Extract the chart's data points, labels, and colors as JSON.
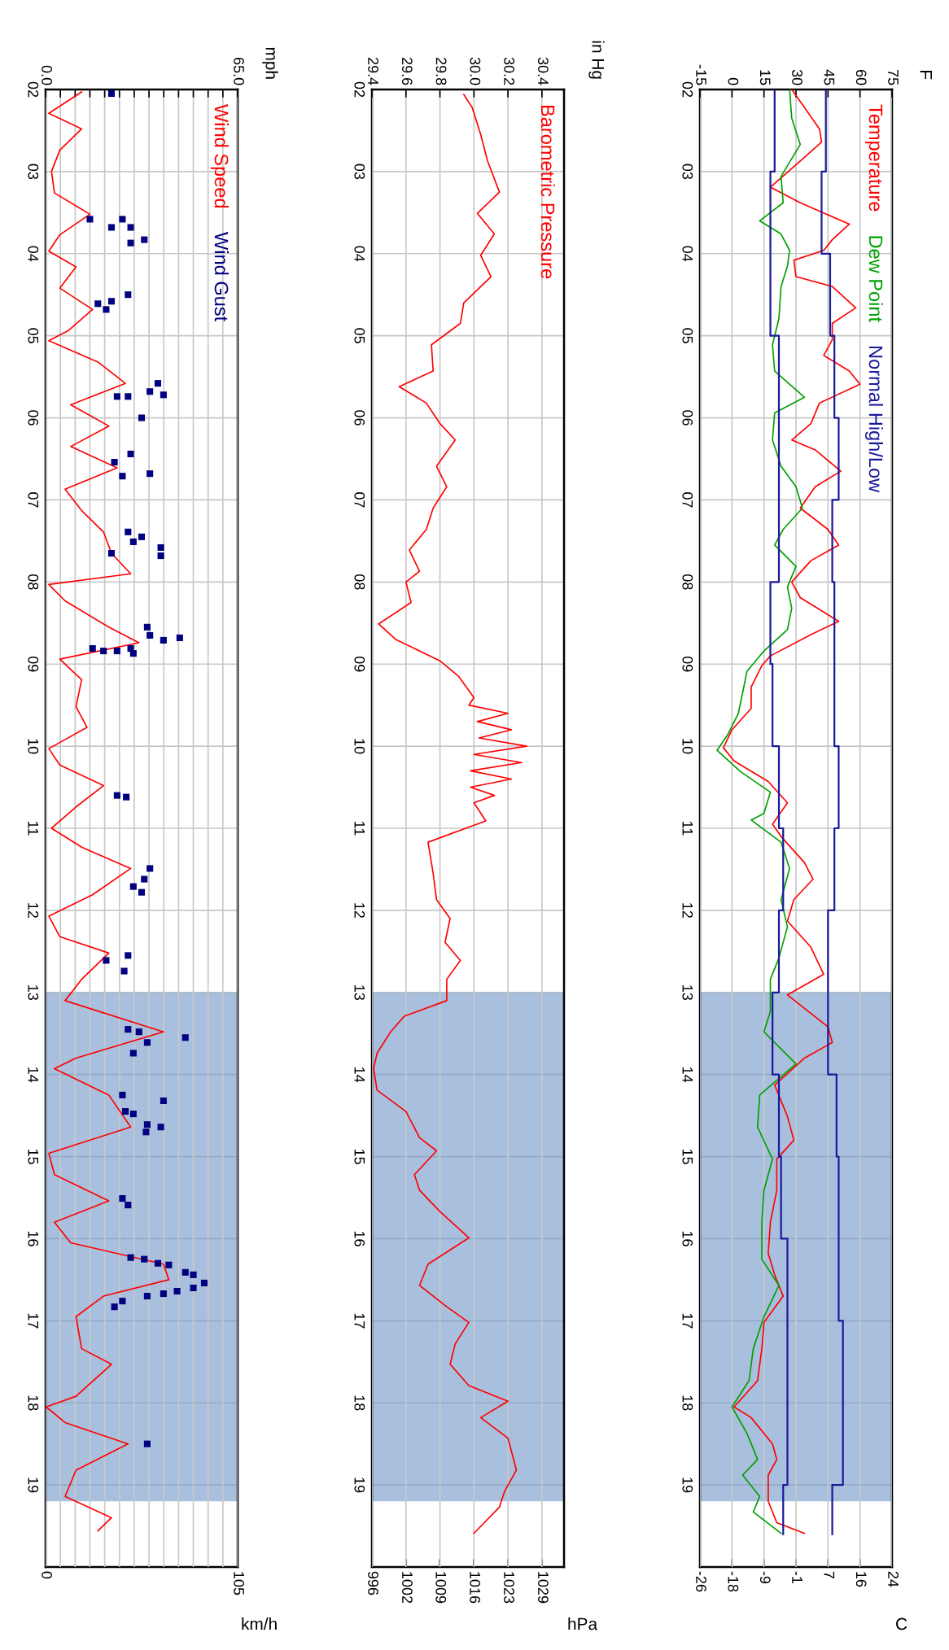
{
  "chart_data": [
    {
      "type": "line",
      "x2label": "F",
      "xlabel": "C",
      "ylim": [
        20,
        2
      ],
      "yticks": [
        {
          "value": 2,
          "label": "02"
        },
        {
          "value": 3,
          "label": "03"
        },
        {
          "value": 4,
          "label": "04"
        },
        {
          "value": 5,
          "label": "05"
        },
        {
          "value": 6,
          "label": "06"
        },
        {
          "value": 7,
          "label": "07"
        },
        {
          "value": 8,
          "label": "08"
        },
        {
          "value": 9,
          "label": "09"
        },
        10,
        11,
        12,
        13,
        14,
        15,
        16,
        17,
        18,
        19
      ],
      "x2lim": [
        -15,
        75
      ],
      "x2ticks": [
        -15,
        0,
        15,
        30,
        45,
        60,
        75
      ],
      "xlim": [
        -26.11,
        23.89
      ],
      "xticks": [
        {
          "value": -26.11,
          "label": "-26"
        },
        {
          "value": -17.78,
          "label": "-18"
        },
        {
          "value": -9.44,
          "label": "-9"
        },
        {
          "value": -1.11,
          "label": "-1"
        },
        {
          "value": 7.22,
          "label": "7"
        },
        {
          "value": 15.56,
          "label": "16"
        },
        {
          "value": 23.89,
          "label": "24"
        }
      ],
      "grid": true,
      "bands": [
        {
          "axis": "y",
          "from": 13,
          "to": 19.2,
          "color": "#6f94c8"
        }
      ],
      "series": [
        {
          "name": "Temperature",
          "axis": "x2",
          "color": "#ff0000",
          "values": [
            2.0,
            2.22,
            2.48,
            2.64,
            2.87,
            3.19,
            3.38,
            3.64,
            3.83,
            3.96,
            4.08,
            4.28,
            4.4,
            4.66,
            4.85,
            5.05,
            5.24,
            5.43,
            5.59,
            5.82,
            6.07,
            6.27,
            6.39,
            6.65,
            6.84,
            7.1,
            7.36,
            7.55,
            7.74,
            8.0,
            8.19,
            8.48,
            8.64,
            8.9,
            9.02,
            9.28,
            9.54,
            9.8,
            10.02,
            10.18,
            10.43,
            10.69,
            10.95,
            11.1,
            11.42,
            11.62,
            11.87,
            12.13,
            12.45,
            12.78,
            13.03,
            13.42,
            13.61,
            13.8,
            14.13,
            14.51,
            14.8,
            15.03,
            15.41,
            15.8,
            16.18,
            16.44,
            16.7,
            17.02,
            17.34,
            17.73,
            18.05,
            18.18,
            18.5,
            18.69,
            18.88,
            19.2,
            19.46,
            19.59
          ],
          "x": [
            28,
            34,
            41,
            42,
            32,
            18,
            32,
            55,
            47,
            43,
            29,
            30,
            47,
            58,
            47,
            47,
            43,
            55,
            60,
            41,
            37,
            28,
            39,
            51,
            39,
            32,
            45,
            50,
            37,
            28,
            32,
            50,
            37,
            18,
            14,
            9,
            9,
            0,
            -4,
            1,
            17,
            26,
            19,
            23,
            34,
            38,
            29,
            26,
            37,
            43,
            26,
            45,
            47,
            34,
            20,
            26,
            29,
            21,
            21,
            18,
            17,
            20,
            24,
            15,
            14,
            12,
            1,
            9,
            19,
            21,
            17,
            17,
            21,
            34
          ]
        },
        {
          "name": "Dew Point",
          "axis": "x2",
          "color": "#00a000",
          "values": [
            2.0,
            2.35,
            2.67,
            3.06,
            3.38,
            3.6,
            3.76,
            3.96,
            4.15,
            4.4,
            4.79,
            5.11,
            5.43,
            5.75,
            5.94,
            6.27,
            6.59,
            6.84,
            7.1,
            7.36,
            7.55,
            7.81,
            8.06,
            8.32,
            8.58,
            8.84,
            9.09,
            9.35,
            9.6,
            9.86,
            10.05,
            10.31,
            10.56,
            10.82,
            10.9,
            11.17,
            11.49,
            11.87,
            12.2,
            12.58,
            12.84,
            13.23,
            13.48,
            13.87,
            14.25,
            14.64,
            15.03,
            15.41,
            15.8,
            16.25,
            16.57,
            16.95,
            17.34,
            17.73,
            18.05,
            18.37,
            18.69,
            18.88,
            19.14,
            19.33,
            19.59
          ],
          "x": [
            27,
            28,
            32,
            23,
            24,
            13,
            23,
            27,
            26,
            23,
            22,
            19,
            20,
            34,
            20,
            19,
            23,
            30,
            33,
            24,
            20,
            30,
            26,
            28,
            26,
            15,
            7,
            5,
            3,
            -2,
            -7,
            4,
            18,
            15,
            9,
            23,
            27,
            23,
            26,
            22,
            18,
            18,
            15,
            30,
            13,
            12,
            19,
            15,
            14,
            14,
            22,
            15,
            10,
            8,
            0,
            7,
            12,
            5,
            13,
            10,
            23
          ]
        },
        {
          "name": "Normal High/Low",
          "type": "step",
          "axis": "x2",
          "color": "#1a1a9a",
          "values": [
            2,
            3,
            4,
            5,
            6,
            7,
            8,
            9,
            10,
            11,
            12,
            13,
            14,
            15,
            16,
            17,
            18,
            19,
            19.6
          ],
          "x": [
            44,
            42,
            46,
            48,
            50,
            47,
            48,
            48,
            50,
            48,
            45,
            45,
            49,
            50,
            50,
            52,
            52,
            47,
            47
          ]
        },
        {
          "type": "step",
          "axis": "x2",
          "color": "#1a1a9a",
          "values": [
            2,
            3,
            4,
            5,
            6,
            7,
            8,
            9,
            10,
            11,
            12,
            13,
            14,
            15,
            16,
            17,
            18,
            19,
            19.6
          ],
          "x": [
            20,
            18,
            18,
            22,
            22,
            22,
            18,
            19,
            22,
            24,
            22,
            19,
            22,
            23,
            26,
            26,
            26,
            24,
            24
          ]
        }
      ]
    },
    {
      "type": "line",
      "x2label": "in Hg",
      "xlabel": "hPa",
      "ylim": [
        20,
        2
      ],
      "yticks": [
        {
          "value": 2,
          "label": "02"
        },
        {
          "value": 3,
          "label": "03"
        },
        {
          "value": 4,
          "label": "04"
        },
        {
          "value": 5,
          "label": "05"
        },
        {
          "value": 6,
          "label": "06"
        },
        {
          "value": 7,
          "label": "07"
        },
        {
          "value": 8,
          "label": "08"
        },
        {
          "value": 9,
          "label": "09"
        },
        10,
        11,
        12,
        13,
        14,
        15,
        16,
        17,
        18,
        19
      ],
      "x2lim": [
        29.4,
        30.53
      ],
      "x2ticks": [
        29.4,
        29.6,
        29.8,
        {
          "value": 30.0,
          "label": "30.0"
        },
        30.2,
        30.4
      ],
      "xlim": [
        995.6,
        1033.9
      ],
      "xticks": [
        {
          "value": 995.6,
          "label": "996"
        },
        {
          "value": 1002.4,
          "label": "1002"
        },
        {
          "value": 1009.1,
          "label": "1009"
        },
        {
          "value": 1015.9,
          "label": "1016"
        },
        {
          "value": 1022.7,
          "label": "1023"
        },
        {
          "value": 1029.5,
          "label": "1029"
        }
      ],
      "grid": true,
      "bands": [
        {
          "axis": "y",
          "from": 13,
          "to": 19.2,
          "color": "#6f94c8"
        }
      ],
      "series": [
        {
          "name": "Barometric Pressure",
          "axis": "x2",
          "color": "#ff0000",
          "values": [
            2.06,
            2.22,
            2.55,
            2.87,
            3.25,
            3.51,
            3.76,
            4.02,
            4.28,
            4.6,
            4.85,
            5.11,
            5.43,
            5.62,
            5.82,
            6.07,
            6.27,
            6.59,
            6.84,
            7.1,
            7.36,
            7.61,
            7.87,
            8.0,
            8.25,
            8.51,
            8.7,
            8.96,
            9.15,
            9.41,
            9.5,
            9.6,
            9.7,
            9.8,
            9.9,
            10.0,
            10.1,
            10.2,
            10.3,
            10.4,
            10.5,
            10.6,
            10.69,
            10.91,
            11.17,
            11.55,
            11.87,
            12.1,
            12.39,
            12.61,
            12.84,
            13.1,
            13.29,
            13.48,
            13.74,
            13.93,
            14.19,
            14.45,
            14.77,
            14.93,
            15.22,
            15.41,
            15.67,
            15.99,
            16.31,
            16.57,
            16.83,
            17.02,
            17.28,
            17.53,
            17.79,
            17.98,
            18.18,
            18.43,
            18.82,
            19.08,
            19.27,
            19.59
          ],
          "x": [
            29.94,
            29.99,
            30.04,
            30.08,
            30.15,
            30.02,
            30.12,
            30.04,
            30.1,
            29.94,
            29.92,
            29.75,
            29.76,
            29.56,
            29.72,
            29.8,
            29.89,
            29.78,
            29.84,
            29.76,
            29.72,
            29.62,
            29.68,
            29.6,
            29.63,
            29.44,
            29.54,
            29.8,
            29.91,
            30.0,
            29.97,
            30.2,
            30.02,
            30.22,
            30.03,
            30.31,
            30.0,
            30.28,
            29.98,
            30.22,
            29.98,
            30.12,
            30.0,
            30.07,
            29.73,
            29.76,
            29.78,
            29.86,
            29.83,
            29.92,
            29.84,
            29.84,
            29.59,
            29.51,
            29.43,
            29.41,
            29.43,
            29.6,
            29.68,
            29.78,
            29.65,
            29.68,
            29.8,
            29.97,
            29.73,
            29.68,
            29.84,
            29.97,
            29.89,
            29.86,
            29.97,
            30.2,
            30.04,
            30.2,
            30.25,
            30.18,
            30.15,
            30.0
          ]
        }
      ]
    },
    {
      "type": "line",
      "x2label": "mph",
      "xlabel": "km/h",
      "ylim": [
        20,
        2
      ],
      "yticks": [
        {
          "value": 2,
          "label": "02"
        },
        {
          "value": 3,
          "label": "03"
        },
        {
          "value": 4,
          "label": "04"
        },
        {
          "value": 5,
          "label": "05"
        },
        {
          "value": 6,
          "label": "06"
        },
        {
          "value": 7,
          "label": "07"
        },
        {
          "value": 8,
          "label": "08"
        },
        {
          "value": 9,
          "label": "09"
        },
        10,
        11,
        12,
        13,
        14,
        15,
        16,
        17,
        18,
        19
      ],
      "x2lim": [
        0,
        65
      ],
      "x2ticks": [
        {
          "value": 0,
          "label": "0.0"
        },
        {
          "value": 5,
          "label": null
        },
        {
          "value": 10,
          "label": null
        },
        {
          "value": 15,
          "label": null
        },
        {
          "value": 20,
          "label": null
        },
        {
          "value": 25,
          "label": null
        },
        {
          "value": 30,
          "label": null
        },
        {
          "value": 35,
          "label": null
        },
        {
          "value": 40,
          "label": null
        },
        {
          "value": 45,
          "label": null
        },
        {
          "value": 50,
          "label": null
        },
        {
          "value": 55,
          "label": null
        },
        {
          "value": 60,
          "label": null
        },
        {
          "value": 65,
          "label": "65.0"
        }
      ],
      "xlim": [
        0,
        105
      ],
      "xticks": [
        0,
        105
      ],
      "grid": true,
      "bands": [
        {
          "axis": "y",
          "from": 13,
          "to": 19.2,
          "color": "#6f94c8"
        }
      ],
      "series": [
        {
          "name": "Wind Speed",
          "axis": "x2",
          "color": "#ff0000",
          "values": [
            2.03,
            2.29,
            2.48,
            2.74,
            3.0,
            3.26,
            3.52,
            3.77,
            3.97,
            4.16,
            4.42,
            4.68,
            4.94,
            5.06,
            5.32,
            5.58,
            5.84,
            6.1,
            6.35,
            6.61,
            6.87,
            7.13,
            7.39,
            7.65,
            7.9,
            8.03,
            8.23,
            8.55,
            8.74,
            8.94,
            9.19,
            9.52,
            9.77,
            10.03,
            10.23,
            10.48,
            10.74,
            11.0,
            11.23,
            11.49,
            11.81,
            12.07,
            12.32,
            12.52,
            12.84,
            13.1,
            13.48,
            13.8,
            13.93,
            14.25,
            14.64,
            14.96,
            15.22,
            15.54,
            15.8,
            16.05,
            16.31,
            16.5,
            16.7,
            16.95,
            17.34,
            17.53,
            17.92,
            18.05,
            18.24,
            18.5,
            18.82,
            19.14,
            19.4,
            19.56
          ],
          "x": [
            12.2,
            1.1,
            12.2,
            4.8,
            2.0,
            3.0,
            15,
            4.8,
            1.1,
            10.3,
            4.8,
            15.9,
            7.6,
            1.1,
            17.7,
            27,
            8.5,
            21.4,
            8.5,
            24.2,
            6.6,
            12.2,
            19.6,
            22.3,
            28.8,
            1.1,
            6.6,
            21.4,
            31.6,
            4.8,
            12.2,
            10.3,
            14,
            1.1,
            4.8,
            19.6,
            10.3,
            2.0,
            12.2,
            28.8,
            15.9,
            1.1,
            4.8,
            21.4,
            12.2,
            6.6,
            39.9,
            10.3,
            3.0,
            21.4,
            28.8,
            1.1,
            3.0,
            21.4,
            3.0,
            8.5,
            39.9,
            41.7,
            19.6,
            10.3,
            12.2,
            22.3,
            10.3,
            0.2,
            6.6,
            27.9,
            10.3,
            6.6,
            22.3,
            17.7
          ]
        },
        {
          "name": "Wind Gust",
          "type": "scatter",
          "axis": "x2",
          "marker": "square",
          "color": "#000080",
          "values": [
            2.05,
            3.58,
            3.68,
            3.58,
            3.68,
            3.83,
            3.87,
            4.61,
            4.58,
            4.5,
            4.68,
            5.58,
            5.68,
            5.72,
            5.74,
            5.74,
            6.0,
            6.44,
            6.54,
            6.71,
            6.68,
            7.39,
            7.45,
            7.51,
            7.58,
            7.68,
            7.65,
            8.55,
            8.65,
            8.68,
            8.71,
            8.81,
            8.84,
            8.84,
            8.81,
            8.87,
            10.6,
            10.62,
            11.49,
            11.62,
            11.71,
            11.78,
            12.61,
            12.55,
            12.74,
            13.45,
            13.48,
            13.61,
            13.74,
            13.55,
            14.25,
            14.32,
            14.45,
            14.48,
            14.61,
            14.64,
            14.7,
            15.51,
            15.59,
            16.23,
            16.25,
            16.3,
            16.32,
            16.41,
            16.44,
            16.54,
            16.6,
            16.64,
            16.67,
            16.7,
            16.76,
            16.83,
            18.5
          ],
          "x": [
            22.3,
            15,
            22.3,
            26,
            28.8,
            33.4,
            28.8,
            17.7,
            22.3,
            27.9,
            20.5,
            38,
            35.3,
            39.9,
            24.2,
            27.9,
            32.5,
            28.8,
            23.3,
            26,
            35.3,
            27.9,
            32.5,
            29.7,
            39,
            39,
            22.3,
            34.4,
            35.3,
            45.4,
            39.9,
            15.9,
            19.6,
            24.2,
            28.8,
            29.7,
            24.2,
            27.3,
            35.3,
            33.4,
            29.7,
            32.5,
            20.5,
            27.9,
            26.6,
            27.9,
            31.6,
            34.4,
            29.7,
            47.3,
            26,
            39.9,
            27,
            29.7,
            34.4,
            39,
            34,
            26,
            27.9,
            28.8,
            33.4,
            38,
            41.7,
            47.3,
            50,
            53.7,
            50,
            44.5,
            39.9,
            34.4,
            26,
            23.3,
            34.4
          ]
        }
      ]
    }
  ]
}
